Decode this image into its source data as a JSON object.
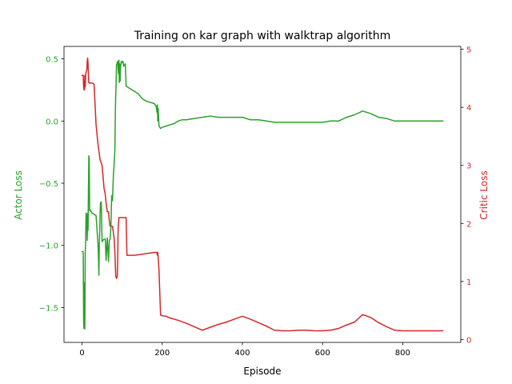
{
  "chart_data": {
    "type": "line",
    "title": "Training on kar graph with walktrap algorithm",
    "xlabel": "Episode",
    "ylabel_left": "Actor Loss",
    "ylabel_right": "Critic Loss",
    "xlim": [
      -45,
      945
    ],
    "ylim_left": [
      -1.78,
      0.6
    ],
    "ylim_right": [
      -0.05,
      5.05
    ],
    "x_ticks": [
      0,
      200,
      400,
      600,
      800
    ],
    "y_ticks_left": [
      -1.5,
      -1.0,
      -0.5,
      0.0,
      0.5
    ],
    "y_ticks_right": [
      0,
      1,
      2,
      3,
      4,
      5
    ],
    "grid": false,
    "colors": {
      "actor": "#2ca02c",
      "critic": "#d62728",
      "text": "#000000"
    },
    "series": [
      {
        "axis": "left",
        "color": "#2ca02c",
        "x": [
          0,
          2,
          3,
          4,
          5,
          6,
          7,
          8,
          9,
          10,
          12,
          13,
          14,
          15,
          16,
          17,
          18,
          19,
          20,
          21,
          25,
          30,
          35,
          40,
          41,
          42,
          43,
          44,
          45,
          46,
          48,
          50,
          52,
          55,
          58,
          60,
          63,
          66,
          68,
          70,
          72,
          74,
          76,
          78,
          80,
          82,
          83,
          84,
          85,
          86,
          87,
          88,
          89,
          90,
          91,
          92,
          93,
          94,
          95,
          96,
          98,
          100,
          102,
          104,
          106,
          108,
          110,
          115,
          120,
          125,
          130,
          140,
          150,
          160,
          170,
          180,
          185,
          187,
          188,
          189,
          190,
          192,
          194,
          196,
          200,
          210,
          220,
          230,
          240,
          250,
          260,
          280,
          300,
          320,
          340,
          360,
          380,
          400,
          420,
          440,
          460,
          480,
          500,
          520,
          540,
          560,
          580,
          600,
          620,
          640,
          660,
          680,
          700,
          720,
          740,
          760,
          780,
          800,
          820,
          840,
          860,
          880,
          900
        ],
        "y": [
          -1.05,
          -1.05,
          -1.06,
          -1.62,
          -1.67,
          -1.3,
          -1.67,
          -1.05,
          -0.98,
          -0.74,
          -0.78,
          -0.96,
          -0.74,
          -0.88,
          -0.55,
          -0.28,
          -0.3,
          -0.72,
          -0.71,
          -0.72,
          -0.74,
          -0.75,
          -0.76,
          -1.0,
          -1.1,
          -1.24,
          -1.0,
          -0.9,
          -0.75,
          -0.66,
          -0.65,
          -0.97,
          -0.96,
          -0.95,
          -0.95,
          -1.12,
          -0.94,
          -1.13,
          -0.96,
          -0.95,
          -0.85,
          -0.6,
          -0.64,
          -0.45,
          -0.35,
          -0.23,
          0.05,
          0.2,
          0.3,
          0.45,
          0.46,
          0.47,
          0.48,
          0.42,
          0.38,
          0.49,
          0.31,
          0.46,
          0.32,
          0.43,
          0.48,
          0.47,
          0.48,
          0.44,
          0.45,
          0.46,
          0.28,
          0.27,
          0.26,
          0.25,
          0.24,
          0.22,
          0.18,
          0.16,
          0.15,
          0.14,
          0.12,
          0.07,
          0.13,
          0.0,
          0.1,
          -0.04,
          -0.05,
          -0.06,
          -0.05,
          -0.04,
          -0.03,
          -0.02,
          0.0,
          0.01,
          0.01,
          0.02,
          0.03,
          0.04,
          0.03,
          0.03,
          0.03,
          0.03,
          0.01,
          0.01,
          0.0,
          -0.01,
          -0.01,
          -0.01,
          -0.01,
          -0.01,
          -0.01,
          -0.01,
          0.0,
          0.0,
          0.03,
          0.05,
          0.08,
          0.06,
          0.03,
          0.02,
          0.0,
          0.0,
          0.0,
          0.0,
          0.0,
          0.0,
          0.0
        ]
      },
      {
        "axis": "right",
        "color": "#d62728",
        "x": [
          0,
          2,
          3,
          4,
          5,
          6,
          7,
          8,
          9,
          10,
          12,
          13,
          14,
          15,
          16,
          17,
          18,
          19,
          20,
          21,
          22,
          25,
          30,
          35,
          40,
          45,
          50,
          55,
          58,
          60,
          63,
          66,
          68,
          70,
          72,
          74,
          76,
          78,
          80,
          82,
          84,
          86,
          88,
          89,
          90,
          92,
          95,
          100,
          105,
          110,
          112,
          115,
          120,
          130,
          140,
          150,
          160,
          170,
          180,
          185,
          187,
          188,
          189,
          190,
          192,
          194,
          196,
          200,
          210,
          220,
          240,
          260,
          280,
          300,
          320,
          340,
          360,
          380,
          400,
          420,
          440,
          460,
          480,
          500,
          520,
          540,
          560,
          580,
          600,
          620,
          640,
          660,
          680,
          700,
          720,
          740,
          760,
          780,
          800,
          820,
          840,
          860,
          880,
          900
        ],
        "y": [
          4.55,
          4.55,
          4.55,
          4.35,
          4.3,
          4.3,
          4.55,
          4.35,
          4.55,
          4.6,
          4.65,
          4.8,
          4.85,
          4.75,
          4.55,
          4.42,
          4.42,
          4.42,
          4.42,
          4.42,
          4.42,
          4.42,
          4.4,
          3.7,
          3.35,
          3.1,
          3.0,
          2.6,
          2.5,
          2.35,
          2.2,
          2.2,
          2.05,
          1.95,
          1.95,
          1.95,
          1.95,
          1.85,
          1.75,
          1.5,
          1.1,
          1.05,
          1.1,
          1.4,
          1.9,
          2.1,
          2.1,
          2.1,
          2.1,
          2.1,
          1.45,
          1.45,
          1.45,
          1.45,
          1.46,
          1.47,
          1.48,
          1.49,
          1.5,
          1.5,
          1.5,
          1.45,
          1.5,
          1.4,
          1.2,
          0.8,
          0.42,
          0.41,
          0.4,
          0.37,
          0.33,
          0.28,
          0.22,
          0.16,
          0.21,
          0.26,
          0.3,
          0.35,
          0.4,
          0.35,
          0.29,
          0.23,
          0.16,
          0.15,
          0.15,
          0.16,
          0.16,
          0.15,
          0.15,
          0.16,
          0.19,
          0.25,
          0.3,
          0.43,
          0.38,
          0.29,
          0.22,
          0.16,
          0.15,
          0.15,
          0.15,
          0.15,
          0.15,
          0.15
        ]
      }
    ]
  }
}
